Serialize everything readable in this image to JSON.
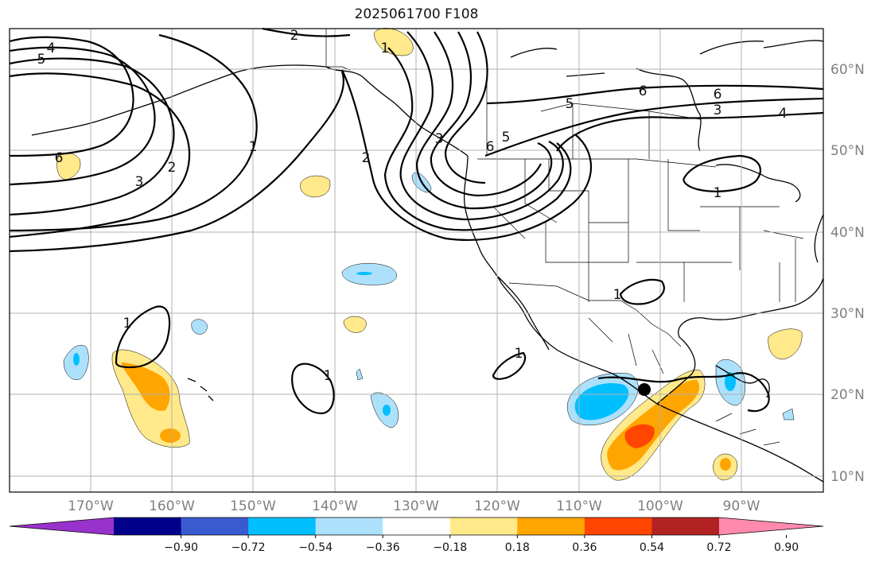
{
  "title": "2025061700 F108",
  "lat_labels": [
    "60°N",
    "50°N",
    "40°N",
    "30°N",
    "20°N",
    "10°N"
  ],
  "lon_labels": [
    "170°W",
    "160°W",
    "150°W",
    "140°W",
    "130°W",
    "120°W",
    "110°W",
    "100°W",
    "90°W"
  ],
  "colorbar": {
    "ticks": [
      "−0.90",
      "−0.72",
      "−0.54",
      "−0.36",
      "−0.18",
      "0.18",
      "0.36",
      "0.54",
      "0.72",
      "0.90"
    ],
    "colors": [
      "#9932cc",
      "#00008b",
      "#3a5bcf",
      "#00bfff",
      "#ade1fb",
      "#ffffff",
      "#ffe98a",
      "#ffa500",
      "#ff4500",
      "#b22222",
      "#ff8aad"
    ]
  },
  "contour_labels": [
    "4",
    "5",
    "2",
    "1",
    "6",
    "3",
    "2",
    "1",
    "2",
    "3",
    "5",
    "6",
    "6",
    "5",
    "3",
    "4",
    "6",
    "1",
    "1",
    "1",
    "1",
    "1",
    "1",
    "1"
  ],
  "marker": "storm-position-dot"
}
